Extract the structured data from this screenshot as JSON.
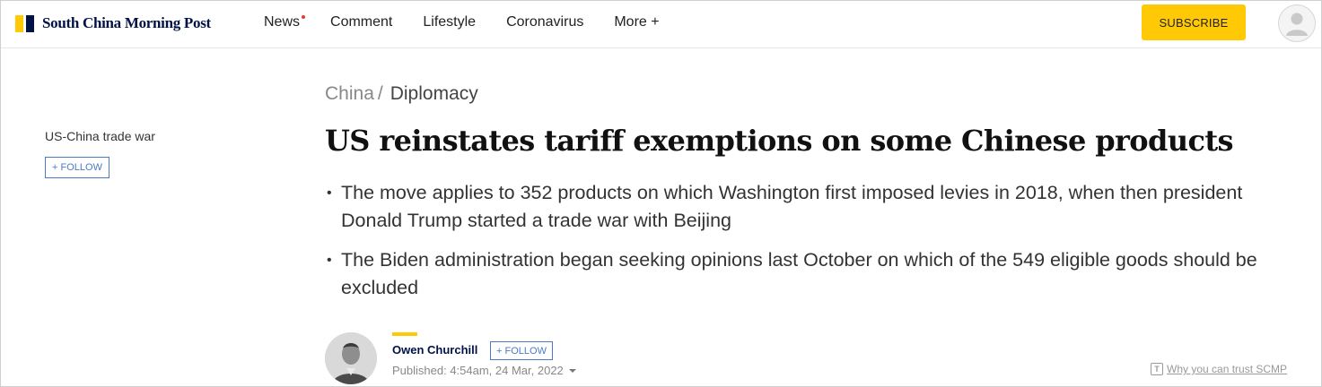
{
  "brand": {
    "name": "South China Morning Post",
    "colors": {
      "yellow": "#FFCA05",
      "navy": "#001246",
      "link_blue": "#4a7ac8",
      "notification_dot": "#E43D30"
    }
  },
  "nav": {
    "items": [
      {
        "label": "News",
        "has_dot": true
      },
      {
        "label": "Comment"
      },
      {
        "label": "Lifestyle"
      },
      {
        "label": "Coronavirus"
      },
      {
        "label": "More +"
      }
    ],
    "subscribe_label": "SUBSCRIBE",
    "account_icon": "user-avatar-icon"
  },
  "sidebar": {
    "topic": "US-China trade war",
    "follow_label": "+ FOLLOW"
  },
  "article": {
    "breadcrumb": {
      "section": "China",
      "separator": "/",
      "subsection": "Diplomacy"
    },
    "headline": "US reinstates tariff exemptions on some Chinese products",
    "bullets": [
      "The move applies to 352 products on which Washington first imposed levies in 2018, when then president Donald Trump started a trade war with Beijing",
      "The Biden administration began seeking opinions last October on which of the 549 eligible goods should be excluded"
    ],
    "author": {
      "name": "Owen Churchill",
      "follow_label": "+ FOLLOW",
      "published": "Published: 4:54am, 24 Mar, 2022"
    },
    "trust_link": "Why you can trust SCMP",
    "trust_icon": "t-badge-icon"
  }
}
